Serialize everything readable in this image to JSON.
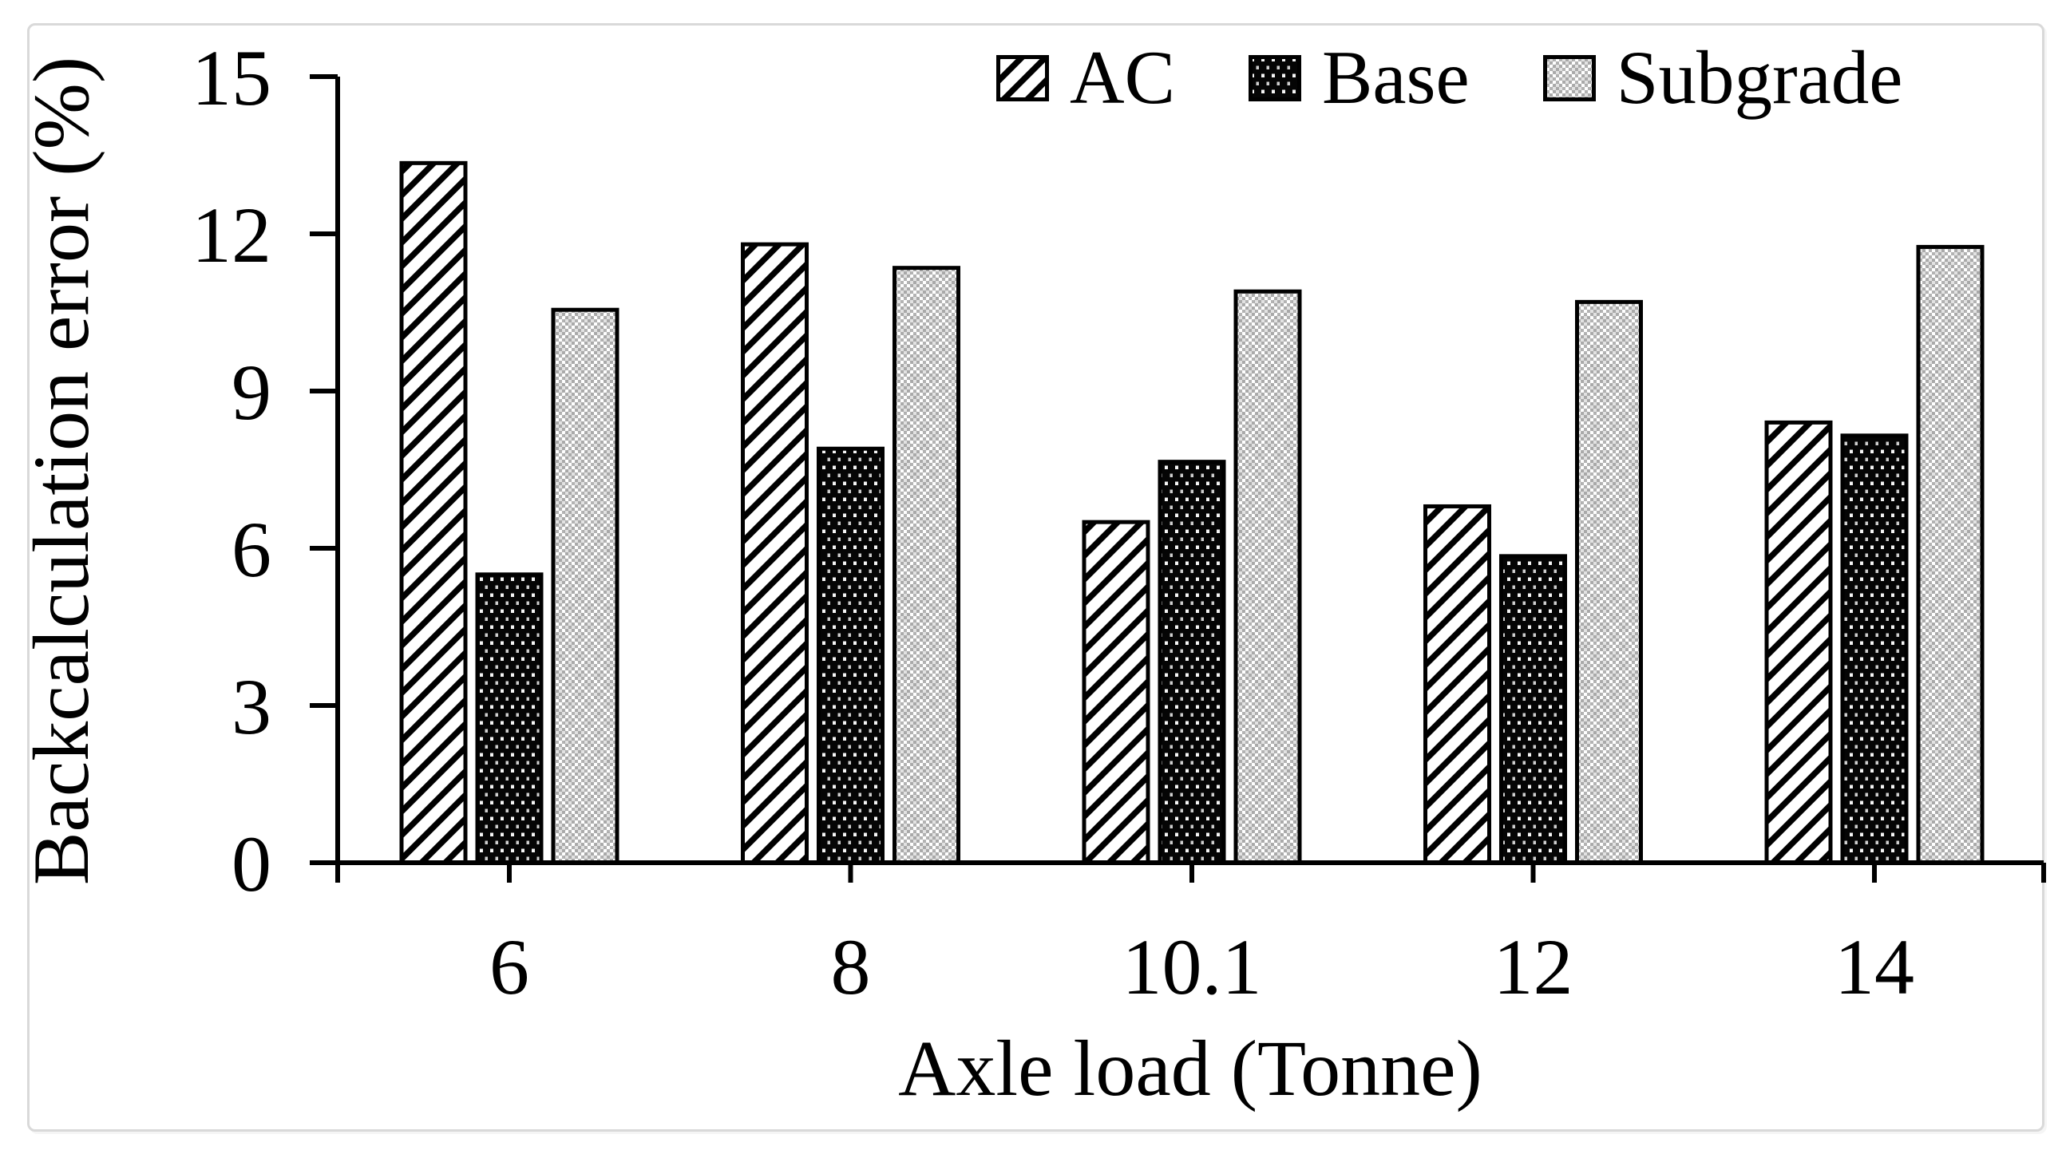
{
  "figure": {
    "background_color": "#ffffff",
    "border_color": "#d9d9d9",
    "ink_color": "#000000"
  },
  "chart_data": {
    "type": "bar",
    "title": "",
    "xlabel": "Axle load (Tonne)",
    "ylabel": "Backcalculation error (%)",
    "categories": [
      "6",
      "8",
      "10.1",
      "12",
      "14"
    ],
    "series": [
      {
        "name": "AC",
        "pattern": "diagonal-hatch",
        "values": [
          13.35,
          11.8,
          6.5,
          6.8,
          8.4
        ]
      },
      {
        "name": "Base",
        "pattern": "black-dotted",
        "values": [
          5.5,
          7.9,
          7.65,
          5.85,
          8.15
        ]
      },
      {
        "name": "Subgrade",
        "pattern": "light-checker",
        "values": [
          10.55,
          11.35,
          10.9,
          10.7,
          11.75
        ]
      }
    ],
    "ylim": [
      0,
      15
    ],
    "yticks": [
      0,
      3,
      6,
      9,
      12,
      15
    ],
    "grid": false,
    "legend_position": "top-right",
    "bar_outline_color": "#000000"
  }
}
